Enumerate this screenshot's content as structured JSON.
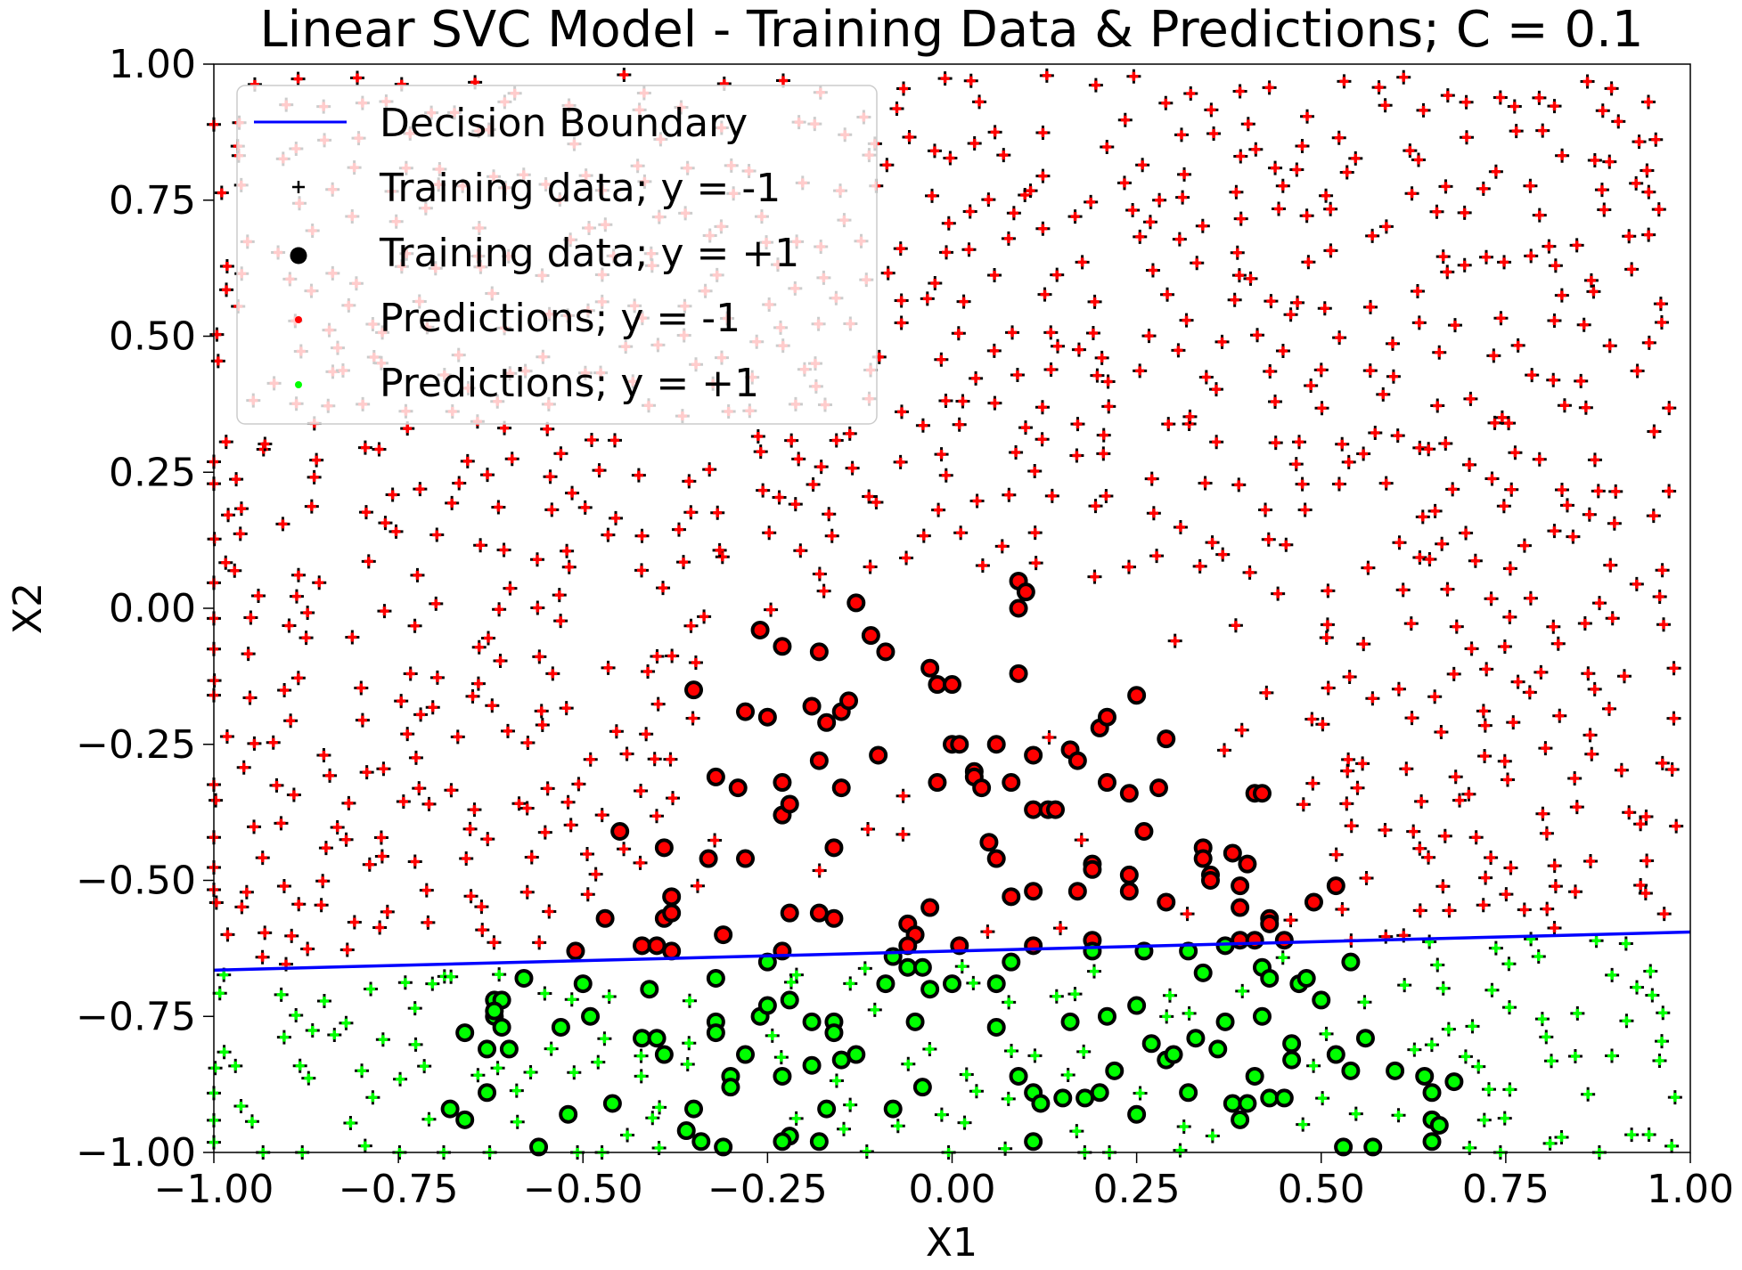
{
  "chart_data": {
    "type": "scatter",
    "title": "Linear SVC Model - Training Data & Predictions; C = 0.1",
    "xlabel": "X1",
    "ylabel": "X2",
    "xlim": [
      -1.0,
      1.0
    ],
    "ylim": [
      -1.0,
      1.0
    ],
    "xticks": [
      "−1.00",
      "−0.75",
      "−0.50",
      "−0.25",
      "0.00",
      "0.25",
      "0.50",
      "0.75",
      "1.00"
    ],
    "yticks": [
      "−1.00",
      "−0.75",
      "−0.50",
      "−0.25",
      "0.00",
      "0.25",
      "0.50",
      "0.75",
      "1.00"
    ],
    "grid": false,
    "legend_position": "top-left",
    "legend": [
      "Decision Boundary",
      "Training data; y = -1",
      "Training data; y = +1",
      "Predictions; y = -1",
      "Predictions; y = +1"
    ],
    "colors": {
      "boundary": "#0000ff",
      "pred_neg": "#ff0000",
      "pred_pos": "#00ff00",
      "train_marker": "#000000"
    },
    "decision_boundary": {
      "x": [
        -1.0,
        1.0
      ],
      "y": [
        -0.665,
        -0.595
      ]
    },
    "series": [
      {
        "name": "Training data; y = +1",
        "marker": "circle",
        "points": [
          [
            -0.26,
            -0.04
          ],
          [
            -0.23,
            -0.07
          ],
          [
            -0.18,
            -0.08
          ],
          [
            -0.13,
            0.01
          ],
          [
            -0.11,
            -0.05
          ],
          [
            -0.09,
            -0.08
          ],
          [
            -0.03,
            -0.11
          ],
          [
            -0.02,
            -0.14
          ],
          [
            0.0,
            -0.14
          ],
          [
            0.09,
            -0.12
          ],
          [
            0.09,
            0.05
          ],
          [
            0.1,
            0.03
          ],
          [
            0.09,
            0.0
          ],
          [
            -0.35,
            -0.15
          ],
          [
            -0.28,
            -0.19
          ],
          [
            -0.25,
            -0.2
          ],
          [
            -0.19,
            -0.18
          ],
          [
            -0.17,
            -0.21
          ],
          [
            -0.15,
            -0.19
          ],
          [
            -0.14,
            -0.17
          ],
          [
            -0.32,
            -0.31
          ],
          [
            -0.29,
            -0.33
          ],
          [
            -0.23,
            -0.32
          ],
          [
            -0.23,
            -0.38
          ],
          [
            -0.22,
            -0.36
          ],
          [
            -0.18,
            -0.28
          ],
          [
            -0.15,
            -0.33
          ],
          [
            -0.1,
            -0.27
          ],
          [
            -0.02,
            -0.32
          ],
          [
            0.0,
            -0.25
          ],
          [
            0.01,
            -0.25
          ],
          [
            0.03,
            -0.3
          ],
          [
            0.03,
            -0.31
          ],
          [
            0.04,
            -0.33
          ],
          [
            0.06,
            -0.25
          ],
          [
            0.08,
            -0.32
          ],
          [
            0.11,
            -0.27
          ],
          [
            0.11,
            -0.37
          ],
          [
            0.13,
            -0.37
          ],
          [
            0.14,
            -0.37
          ],
          [
            0.16,
            -0.26
          ],
          [
            0.17,
            -0.28
          ],
          [
            0.2,
            -0.22
          ],
          [
            0.21,
            -0.2
          ],
          [
            0.21,
            -0.32
          ],
          [
            0.24,
            -0.34
          ],
          [
            0.25,
            -0.16
          ],
          [
            0.26,
            -0.41
          ],
          [
            0.28,
            -0.33
          ],
          [
            0.29,
            -0.24
          ],
          [
            -0.45,
            -0.41
          ],
          [
            -0.39,
            -0.44
          ],
          [
            -0.33,
            -0.46
          ],
          [
            -0.28,
            -0.46
          ],
          [
            -0.16,
            -0.44
          ],
          [
            0.05,
            -0.43
          ],
          [
            0.06,
            -0.46
          ],
          [
            0.08,
            -0.53
          ],
          [
            0.11,
            -0.52
          ],
          [
            0.19,
            -0.47
          ],
          [
            0.19,
            -0.48
          ],
          [
            0.17,
            -0.52
          ],
          [
            0.24,
            -0.49
          ],
          [
            0.24,
            -0.52
          ],
          [
            0.29,
            -0.54
          ],
          [
            0.34,
            -0.44
          ],
          [
            0.34,
            -0.46
          ],
          [
            0.35,
            -0.49
          ],
          [
            0.35,
            -0.5
          ],
          [
            0.38,
            -0.45
          ],
          [
            0.4,
            -0.47
          ],
          [
            0.39,
            -0.55
          ],
          [
            0.39,
            -0.51
          ],
          [
            0.41,
            -0.34
          ],
          [
            0.42,
            -0.34
          ],
          [
            0.43,
            -0.57
          ],
          [
            0.43,
            -0.58
          ],
          [
            0.49,
            -0.54
          ],
          [
            0.52,
            -0.51
          ],
          [
            -0.38,
            -0.53
          ],
          [
            -0.39,
            -0.57
          ],
          [
            -0.38,
            -0.56
          ],
          [
            -0.47,
            -0.57
          ],
          [
            -0.22,
            -0.56
          ],
          [
            -0.18,
            -0.56
          ],
          [
            -0.16,
            -0.57
          ],
          [
            -0.06,
            -0.58
          ],
          [
            -0.05,
            -0.6
          ],
          [
            -0.03,
            -0.55
          ],
          [
            -0.42,
            -0.62
          ],
          [
            -0.4,
            -0.62
          ],
          [
            -0.38,
            -0.63
          ],
          [
            -0.31,
            -0.6
          ],
          [
            -0.23,
            -0.63
          ],
          [
            -0.06,
            -0.62
          ],
          [
            0.01,
            -0.62
          ],
          [
            0.11,
            -0.62
          ],
          [
            0.19,
            -0.61
          ],
          [
            0.19,
            -0.63
          ],
          [
            0.37,
            -0.62
          ],
          [
            0.39,
            -0.61
          ],
          [
            0.41,
            -0.61
          ],
          [
            0.45,
            -0.61
          ],
          [
            -0.51,
            -0.63
          ]
        ]
      },
      {
        "name": "Training data; y = +1",
        "marker": "circle",
        "points": [
          [
            -0.62,
            -0.72
          ],
          [
            -0.61,
            -0.72
          ],
          [
            -0.62,
            -0.75
          ],
          [
            -0.62,
            -0.74
          ],
          [
            -0.61,
            -0.77
          ],
          [
            -0.6,
            -0.81
          ],
          [
            -0.63,
            -0.81
          ],
          [
            -0.66,
            -0.78
          ],
          [
            -0.58,
            -0.68
          ],
          [
            -0.5,
            -0.69
          ],
          [
            -0.49,
            -0.75
          ],
          [
            -0.53,
            -0.77
          ],
          [
            -0.41,
            -0.7
          ],
          [
            -0.42,
            -0.79
          ],
          [
            -0.4,
            -0.79
          ],
          [
            -0.39,
            -0.82
          ],
          [
            -0.32,
            -0.68
          ],
          [
            -0.32,
            -0.76
          ],
          [
            -0.32,
            -0.78
          ],
          [
            -0.26,
            -0.75
          ],
          [
            -0.25,
            -0.73
          ],
          [
            -0.25,
            -0.65
          ],
          [
            -0.22,
            -0.72
          ],
          [
            -0.19,
            -0.76
          ],
          [
            -0.16,
            -0.76
          ],
          [
            -0.16,
            -0.78
          ],
          [
            -0.15,
            -0.83
          ],
          [
            -0.13,
            -0.82
          ],
          [
            -0.09,
            -0.69
          ],
          [
            -0.08,
            -0.64
          ],
          [
            -0.06,
            -0.66
          ],
          [
            -0.04,
            -0.66
          ],
          [
            -0.03,
            -0.7
          ],
          [
            -0.05,
            -0.76
          ],
          [
            0.0,
            -0.69
          ],
          [
            0.06,
            -0.69
          ],
          [
            0.08,
            -0.65
          ],
          [
            0.06,
            -0.77
          ],
          [
            0.16,
            -0.76
          ],
          [
            0.21,
            -0.75
          ],
          [
            0.25,
            -0.73
          ],
          [
            0.26,
            -0.63
          ],
          [
            0.27,
            -0.8
          ],
          [
            0.29,
            -0.83
          ],
          [
            0.3,
            -0.82
          ],
          [
            0.32,
            -0.63
          ],
          [
            0.33,
            -0.79
          ],
          [
            0.34,
            -0.67
          ],
          [
            0.36,
            -0.81
          ],
          [
            0.37,
            -0.76
          ],
          [
            0.42,
            -0.66
          ],
          [
            0.43,
            -0.68
          ],
          [
            0.42,
            -0.75
          ],
          [
            0.46,
            -0.8
          ],
          [
            0.46,
            -0.83
          ],
          [
            0.47,
            -0.69
          ],
          [
            0.48,
            -0.68
          ],
          [
            0.5,
            -0.72
          ],
          [
            0.52,
            -0.82
          ],
          [
            0.54,
            -0.65
          ],
          [
            0.54,
            -0.85
          ],
          [
            0.56,
            -0.79
          ],
          [
            -0.68,
            -0.92
          ],
          [
            -0.66,
            -0.94
          ],
          [
            -0.63,
            -0.89
          ],
          [
            -0.56,
            -0.99
          ],
          [
            -0.52,
            -0.93
          ],
          [
            -0.46,
            -0.91
          ],
          [
            -0.35,
            -0.92
          ],
          [
            -0.36,
            -0.96
          ],
          [
            -0.34,
            -0.98
          ],
          [
            -0.31,
            -0.99
          ],
          [
            -0.3,
            -0.86
          ],
          [
            -0.3,
            -0.88
          ],
          [
            -0.28,
            -0.82
          ],
          [
            -0.23,
            -0.86
          ],
          [
            -0.22,
            -0.97
          ],
          [
            -0.23,
            -0.98
          ],
          [
            -0.19,
            -0.84
          ],
          [
            -0.18,
            -0.98
          ],
          [
            -0.17,
            -0.92
          ],
          [
            -0.08,
            -0.92
          ],
          [
            -0.04,
            -0.88
          ],
          [
            0.09,
            -0.86
          ],
          [
            0.11,
            -0.89
          ],
          [
            0.11,
            -0.98
          ],
          [
            0.12,
            -0.91
          ],
          [
            0.15,
            -0.9
          ],
          [
            0.18,
            -0.9
          ],
          [
            0.2,
            -0.89
          ],
          [
            0.22,
            -0.85
          ],
          [
            0.25,
            -0.93
          ],
          [
            0.32,
            -0.89
          ],
          [
            0.38,
            -0.91
          ],
          [
            0.39,
            -0.94
          ],
          [
            0.4,
            -0.91
          ],
          [
            0.41,
            -0.86
          ],
          [
            0.43,
            -0.9
          ],
          [
            0.45,
            -0.9
          ],
          [
            0.53,
            -0.99
          ],
          [
            0.57,
            -0.99
          ],
          [
            0.6,
            -0.85
          ],
          [
            0.64,
            -0.86
          ],
          [
            0.65,
            -0.89
          ],
          [
            0.65,
            -0.94
          ],
          [
            0.66,
            -0.95
          ],
          [
            0.65,
            -0.98
          ],
          [
            0.68,
            -0.87
          ]
        ]
      }
    ],
    "marker_notes": "Crosses mark training data with y = -1 (uniform over the square except the circle clusters); red fill above the boundary, green fill below."
  }
}
